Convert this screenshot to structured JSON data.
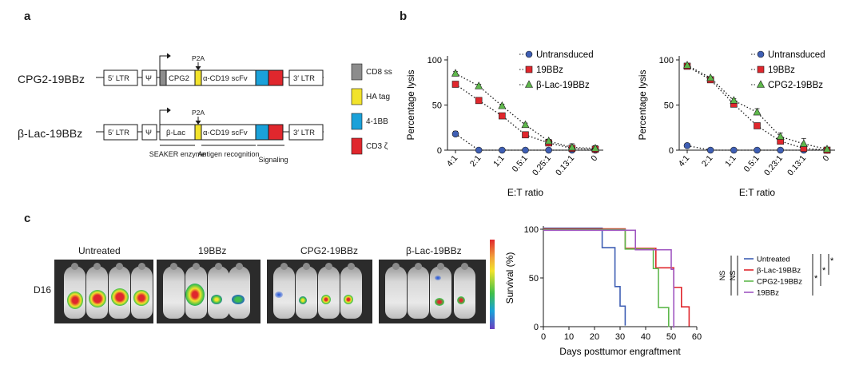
{
  "panels": {
    "a": "a",
    "b": "b",
    "c": "c"
  },
  "construct_a": {
    "name1": "CPG2-19BBz",
    "name2": "β-Lac-19BBz",
    "ltr5": "5′ LTR",
    "psi": "Ψ",
    "cpg2": "CPG2",
    "blac": "β-Lac",
    "scfv": "α-CD19 scFv",
    "ltr3": "3′ LTR",
    "p2a": "P2A",
    "brackets": [
      "SEAKER enzyme",
      "Antigen recognition",
      "Signaling"
    ],
    "legend": [
      {
        "label": "CD8 ss",
        "color": "#8c8c8c"
      },
      {
        "label": "HA tag",
        "color": "#f2e32b"
      },
      {
        "label": "4-1BB",
        "color": "#1aa1d9"
      },
      {
        "label": "CD3 ζ",
        "color": "#e0272d"
      }
    ]
  },
  "chart_data": [
    {
      "type": "line",
      "panel": "b-left",
      "categories": [
        "4:1",
        "2:1",
        "1:1",
        "0.5:1",
        "0.25:1",
        "0.13:1",
        "0"
      ],
      "xlabel": "E:T ratio",
      "ylabel": "Percentage lysis",
      "ylim": [
        0,
        100
      ],
      "yticks": [
        "0",
        "50",
        "100"
      ],
      "legend_position": "top-right",
      "series": [
        {
          "name": "Untransduced",
          "marker": "circle",
          "color": "#3f5fb4",
          "values": [
            18,
            0,
            0,
            0,
            0,
            0,
            0
          ],
          "errors": [
            3,
            0,
            0,
            0,
            0,
            0,
            0
          ]
        },
        {
          "name": "19BBz",
          "marker": "square",
          "color": "#e0272d",
          "values": [
            73,
            55,
            38,
            17,
            8,
            2,
            1
          ],
          "errors": [
            3,
            2,
            2,
            2,
            2,
            5,
            3
          ]
        },
        {
          "name": "β-Lac-19BBz",
          "marker": "triangle",
          "color": "#5fb84c",
          "values": [
            85,
            71,
            49,
            28,
            10,
            3,
            2
          ],
          "errors": [
            2,
            2,
            2,
            2,
            2,
            4,
            3
          ]
        }
      ]
    },
    {
      "type": "line",
      "panel": "b-right",
      "categories": [
        "4:1",
        "2:1",
        "1:1",
        "0.5:1",
        "0.23:1",
        "0.13:1",
        "0"
      ],
      "xlabel": "E:T ratio",
      "ylabel": "Percentage lysis",
      "ylim": [
        0,
        100
      ],
      "yticks": [
        "0",
        "50",
        "100"
      ],
      "legend_position": "top-right",
      "series": [
        {
          "name": "Untransduced",
          "marker": "circle",
          "color": "#3f5fb4",
          "values": [
            5,
            0,
            0,
            0,
            0,
            0,
            0
          ],
          "errors": [
            0,
            0,
            0,
            0,
            0,
            0,
            0
          ]
        },
        {
          "name": "19BBz",
          "marker": "square",
          "color": "#e0272d",
          "values": [
            93,
            78,
            51,
            27,
            10,
            2,
            0
          ],
          "errors": [
            1,
            1,
            2,
            2,
            3,
            3,
            1
          ]
        },
        {
          "name": "CPG2-19BBz",
          "marker": "triangle",
          "color": "#5fb84c",
          "values": [
            94,
            80,
            55,
            42,
            15,
            7,
            1
          ],
          "errors": [
            1,
            1,
            2,
            4,
            4,
            6,
            1
          ]
        }
      ]
    },
    {
      "type": "line",
      "subtype": "kaplan-meier",
      "panel": "c",
      "xlabel": "Days posttumor engraftment",
      "ylabel": "Survival (%)",
      "xlim": [
        0,
        60
      ],
      "ylim": [
        0,
        100
      ],
      "xticks": [
        "0",
        "10",
        "20",
        "30",
        "40",
        "50",
        "60"
      ],
      "yticks": [
        "0",
        "50",
        "100"
      ],
      "series": [
        {
          "name": "Untreated",
          "color": "#3f5fb4",
          "steps": [
            [
              0,
              100
            ],
            [
              23,
              100
            ],
            [
              23,
              80
            ],
            [
              28,
              80
            ],
            [
              28,
              40
            ],
            [
              30,
              40
            ],
            [
              30,
              20
            ],
            [
              32,
              20
            ],
            [
              32,
              0
            ]
          ]
        },
        {
          "name": "β-Lac-19BBz",
          "color": "#e0272d",
          "steps": [
            [
              0,
              100
            ],
            [
              32,
              100
            ],
            [
              32,
              80
            ],
            [
              44,
              80
            ],
            [
              44,
              60
            ],
            [
              51,
              60
            ],
            [
              51,
              40
            ],
            [
              54,
              40
            ],
            [
              54,
              20
            ],
            [
              57,
              20
            ],
            [
              57,
              0
            ]
          ]
        },
        {
          "name": "CPG2-19BBz",
          "color": "#5fb84c",
          "steps": [
            [
              0,
              100
            ],
            [
              32,
              100
            ],
            [
              32,
              80
            ],
            [
              43,
              80
            ],
            [
              43,
              60
            ],
            [
              45,
              60
            ],
            [
              45,
              20
            ],
            [
              49,
              20
            ],
            [
              49,
              0
            ]
          ]
        },
        {
          "name": "19BBz",
          "color": "#a057c1",
          "steps": [
            [
              0,
              100
            ],
            [
              36,
              100
            ],
            [
              36,
              80
            ],
            [
              50,
              80
            ],
            [
              50,
              60
            ],
            [
              51,
              60
            ],
            [
              51,
              0
            ]
          ]
        }
      ],
      "significance": [
        "NS",
        "NS",
        "*",
        "*",
        "*"
      ]
    }
  ],
  "imaging": {
    "groups": [
      "Untreated",
      "19BBz",
      "CPG2-19BBz",
      "β-Lac-19BBz"
    ],
    "day": "D16"
  }
}
